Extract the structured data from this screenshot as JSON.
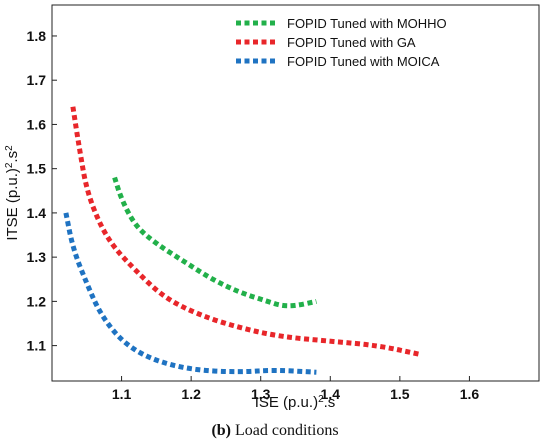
{
  "chart_data": {
    "type": "line",
    "xlabel": "ISE (p.u.)².s",
    "ylabel": "ITSE (p.u.)².s²",
    "xlim": [
      1.0,
      1.7
    ],
    "ylim": [
      1.02,
      1.87
    ],
    "xticks": [
      "1.1",
      "1.2",
      "1.3",
      "1.4",
      "1.5",
      "1.6"
    ],
    "yticks": [
      "1.1",
      "1.2",
      "1.3",
      "1.4",
      "1.5",
      "1.6",
      "1.7",
      "1.8"
    ],
    "grid": false,
    "legend": "top-right",
    "series": [
      {
        "name": "FOPID Tuned with MOHHO",
        "color": "#22b04a",
        "points": [
          [
            1.09,
            1.48
          ],
          [
            1.1,
            1.43
          ],
          [
            1.12,
            1.37
          ],
          [
            1.15,
            1.33
          ],
          [
            1.19,
            1.29
          ],
          [
            1.23,
            1.25
          ],
          [
            1.27,
            1.22
          ],
          [
            1.31,
            1.2
          ],
          [
            1.33,
            1.19
          ],
          [
            1.35,
            1.19
          ],
          [
            1.38,
            1.2
          ]
        ]
      },
      {
        "name": "FOPID Tuned with GA",
        "color": "#e8262a",
        "points": [
          [
            1.03,
            1.64
          ],
          [
            1.04,
            1.54
          ],
          [
            1.05,
            1.45
          ],
          [
            1.07,
            1.37
          ],
          [
            1.09,
            1.32
          ],
          [
            1.12,
            1.27
          ],
          [
            1.16,
            1.21
          ],
          [
            1.21,
            1.17
          ],
          [
            1.27,
            1.14
          ],
          [
            1.33,
            1.12
          ],
          [
            1.4,
            1.11
          ],
          [
            1.47,
            1.1
          ],
          [
            1.53,
            1.08
          ]
        ]
      },
      {
        "name": "FOPID Tuned with MOICA",
        "color": "#1f73c2",
        "points": [
          [
            1.02,
            1.4
          ],
          [
            1.03,
            1.32
          ],
          [
            1.05,
            1.24
          ],
          [
            1.07,
            1.17
          ],
          [
            1.1,
            1.11
          ],
          [
            1.14,
            1.07
          ],
          [
            1.2,
            1.045
          ],
          [
            1.27,
            1.04
          ],
          [
            1.32,
            1.045
          ],
          [
            1.38,
            1.04
          ]
        ]
      }
    ]
  },
  "caption": {
    "label": "(b)",
    "text": "Load conditions"
  }
}
